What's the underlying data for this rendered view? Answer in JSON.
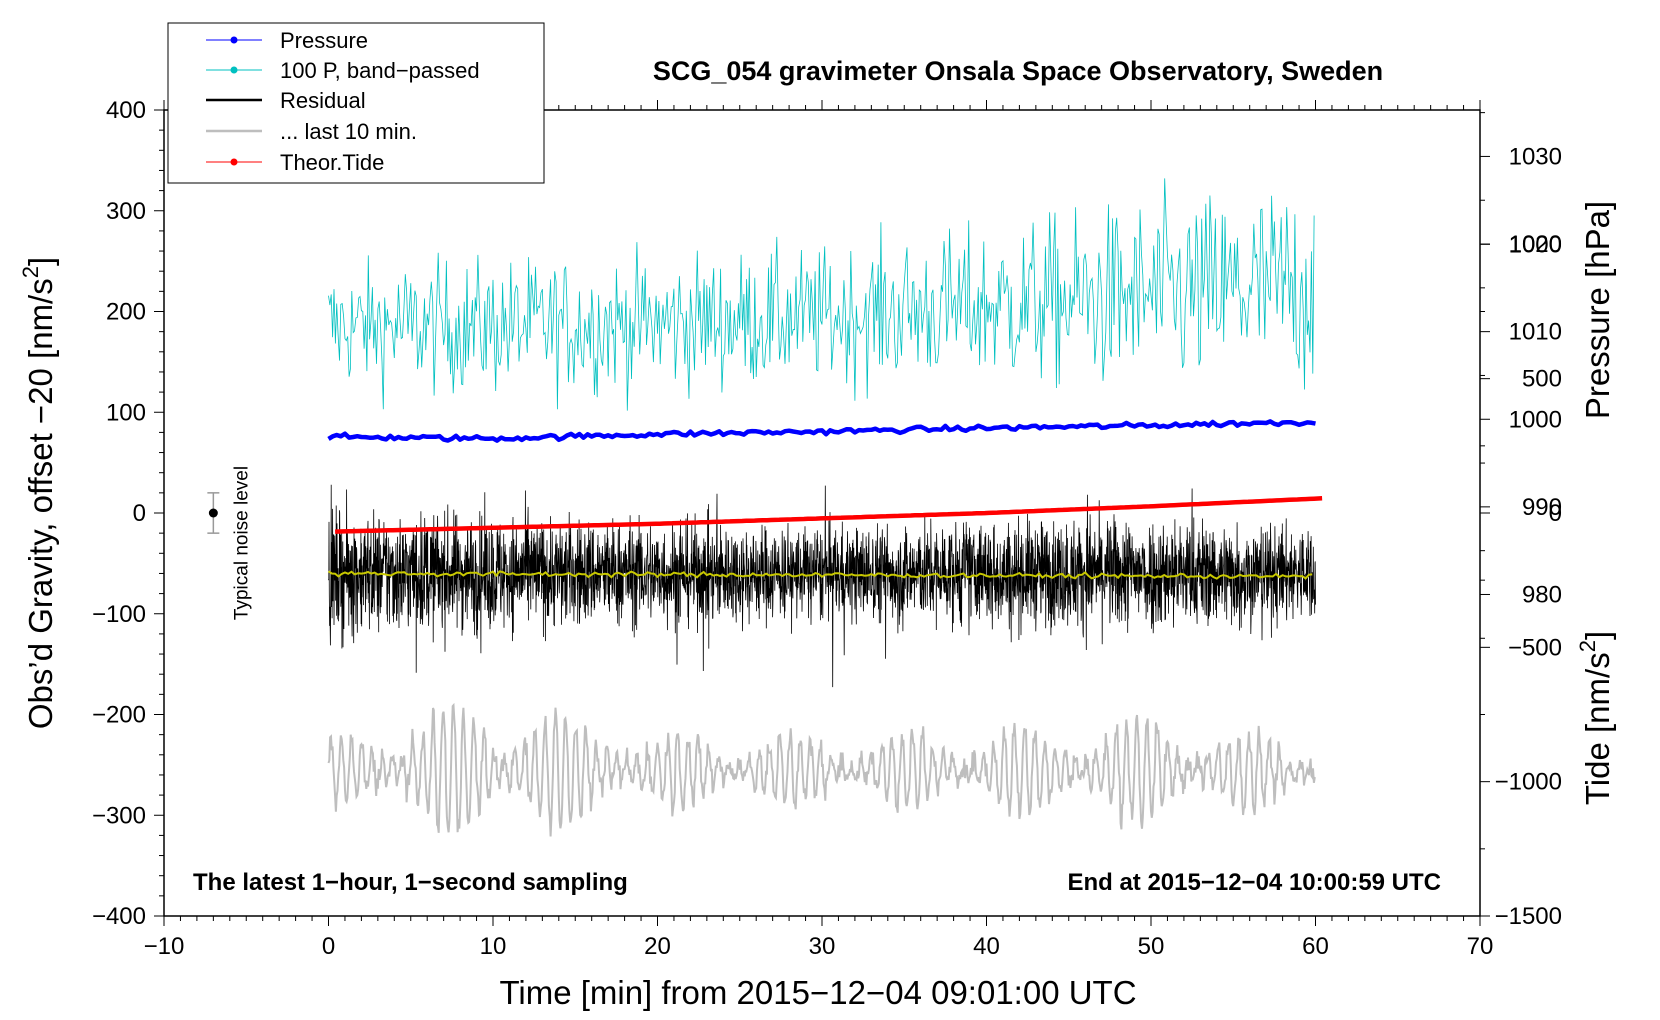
{
  "chart_data": {
    "type": "line",
    "title": "SCG_054 gravimeter Onsala Space Observatory, Sweden",
    "xlabel": "Time [min] from 2015−12−04 09:01:00 UTC",
    "ylabel_left": "Obs’d Gravity, offset −20 [nm/s²]",
    "ylabel_left_parts": {
      "main": "Obs’d Gravity, offset −20 [nm/s",
      "sup": "2",
      "tail": "]"
    },
    "ylabel_right_pressure": "Pressure [hPa]",
    "ylabel_right_tide": "Tide [nm/s²]",
    "ylabel_right_tide_parts": {
      "main": "Tide [nm/s",
      "sup": "2",
      "tail": "]"
    },
    "xlim": [
      -10,
      70
    ],
    "ylim_left": [
      -400,
      400
    ],
    "ylim_pressure": [
      943.3,
      1035.3
    ],
    "ylim_tide": [
      -1500,
      1500
    ],
    "x_ticks": [
      "−10",
      "0",
      "10",
      "20",
      "30",
      "40",
      "50",
      "60",
      "70"
    ],
    "x_tick_values": [
      -10,
      0,
      10,
      20,
      30,
      40,
      50,
      60,
      70
    ],
    "y_ticks_left": [
      "400",
      "300",
      "200",
      "100",
      "0",
      "−100",
      "−200",
      "−300",
      "−400"
    ],
    "y_tick_values_left": [
      400,
      300,
      200,
      100,
      0,
      -100,
      -200,
      -300,
      -400
    ],
    "pressure_ticks": [
      "1030",
      "1020",
      "1010",
      "1000",
      "990",
      "980"
    ],
    "pressure_tick_values": [
      1030,
      1020,
      1010,
      1000,
      990,
      980
    ],
    "tide_ticks": [
      "1000",
      "500",
      "0",
      "−500",
      "−1000",
      "−1500"
    ],
    "tide_tick_values": [
      1000,
      500,
      0,
      -500,
      -1000,
      -1500
    ],
    "notes": {
      "left": "The latest 1−hour, 1−second sampling",
      "right": "End at 2015−12−04 10:00:59 UTC"
    },
    "noise": {
      "label": "Typical noise level",
      "x": -7,
      "y": 0,
      "err": 20
    },
    "legend": [
      {
        "label": "Pressure",
        "color": "#0000ff",
        "marker": true
      },
      {
        "label": "100 P, band−passed",
        "color": "#00c0c0",
        "marker": true
      },
      {
        "label": "Residual",
        "color": "#000000",
        "marker": false
      },
      {
        "label": "... last 10 min.",
        "color": "#bebebe",
        "marker": false
      },
      {
        "label": "Theor.Tide",
        "color": "#ff0000",
        "marker": true
      }
    ],
    "series": [
      {
        "name": "Pressure",
        "axis": "pressure",
        "color": "#0000ff",
        "x": [
          0,
          10,
          20,
          30,
          40,
          50,
          60
        ],
        "values": [
          998.0,
          997.8,
          998.3,
          998.6,
          999.0,
          999.3,
          999.7
        ]
      },
      {
        "name": "100 P, band−passed",
        "axis": "left",
        "color": "#00c0c0",
        "center": [
          185,
          185,
          188,
          195,
          205,
          215,
          225
        ],
        "amplitude": [
          55,
          60,
          60,
          60,
          70,
          85,
          95
        ],
        "x": [
          0,
          10,
          20,
          30,
          40,
          50,
          60
        ]
      },
      {
        "name": "Residual",
        "axis": "left",
        "color": "#000000",
        "center": -60,
        "amplitude": [
          60,
          55,
          50,
          45,
          50,
          55,
          45
        ],
        "x": [
          0,
          10,
          20,
          30,
          40,
          50,
          60
        ]
      },
      {
        "name": "Residual smoothed",
        "axis": "left",
        "color": "#c8c800",
        "x": [
          0,
          60
        ],
        "values": [
          -60,
          -63
        ]
      },
      {
        "name": "... last 10 min.",
        "axis": "left",
        "color": "#bebebe",
        "center": -255,
        "amplitude": [
          35,
          75,
          35,
          35,
          40,
          55,
          25
        ],
        "x": [
          0,
          10,
          20,
          30,
          40,
          50,
          60
        ]
      },
      {
        "name": "Theor.Tide",
        "axis": "tide",
        "color": "#ff0000",
        "x": [
          0,
          10,
          20,
          30,
          40,
          50,
          60.5
        ],
        "values": [
          -70,
          -55,
          -40,
          -20,
          0,
          25,
          55
        ]
      }
    ]
  }
}
